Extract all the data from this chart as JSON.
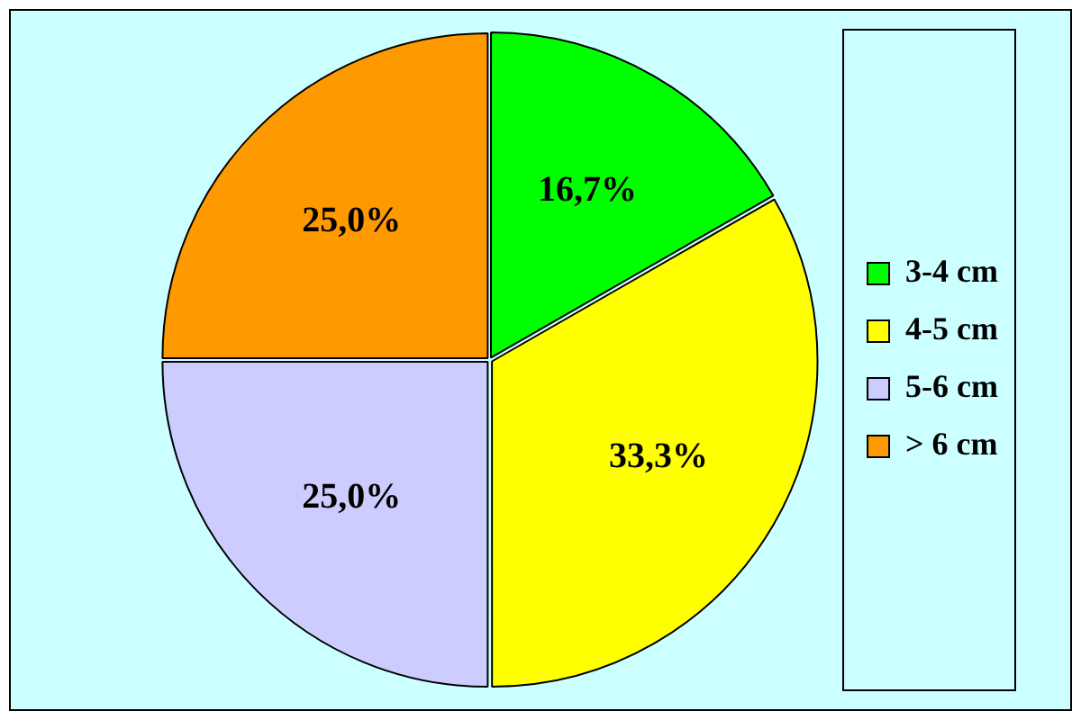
{
  "chart_data": {
    "type": "pie",
    "categories": [
      "3-4 cm",
      "4-5 cm",
      "5-6 cm",
      "> 6 cm"
    ],
    "values": [
      16.7,
      33.3,
      25.0,
      25.0
    ],
    "colors": [
      "#00ff00",
      "#ffff00",
      "#ccccff",
      "#ff9900"
    ],
    "value_labels": [
      "16,7%",
      "33,3%",
      "25,0%",
      "25,0%"
    ],
    "legend": "right"
  }
}
